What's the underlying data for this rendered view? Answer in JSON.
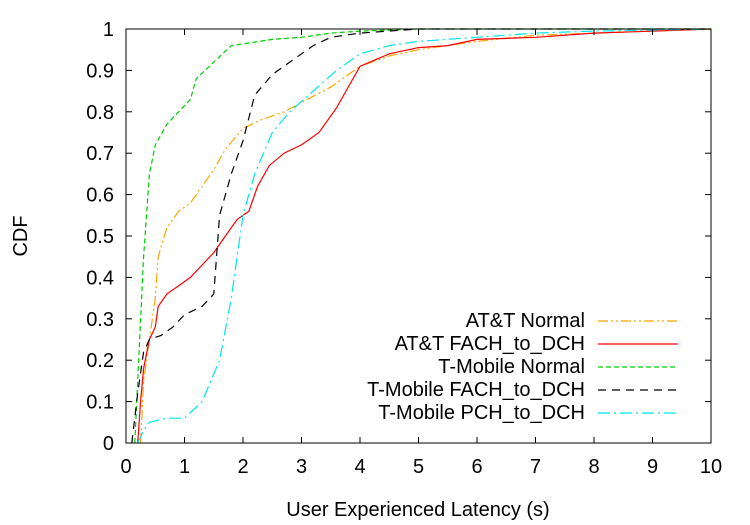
{
  "chart_data": {
    "type": "line",
    "title": "",
    "xlabel": "User Experienced Latency (s)",
    "ylabel": "CDF",
    "xlim": [
      0,
      10
    ],
    "ylim": [
      0,
      1
    ],
    "xticks": [
      "0",
      "1",
      "2",
      "3",
      "4",
      "5",
      "6",
      "7",
      "8",
      "9",
      "10"
    ],
    "yticks": [
      "0",
      "0.1",
      "0.2",
      "0.3",
      "0.4",
      "0.5",
      "0.6",
      "0.7",
      "0.8",
      "0.9",
      "1"
    ],
    "grid": false,
    "legend_position": "bottom-right",
    "series": [
      {
        "name": "AT&T Normal",
        "color": "#ffa500",
        "dash": "dash-dot-dot",
        "points": [
          [
            0.25,
            0
          ],
          [
            0.3,
            0.15
          ],
          [
            0.4,
            0.25
          ],
          [
            0.5,
            0.35
          ],
          [
            0.55,
            0.45
          ],
          [
            0.7,
            0.52
          ],
          [
            0.9,
            0.56
          ],
          [
            1.1,
            0.58
          ],
          [
            1.3,
            0.62
          ],
          [
            1.5,
            0.66
          ],
          [
            1.7,
            0.71
          ],
          [
            2.0,
            0.76
          ],
          [
            2.3,
            0.78
          ],
          [
            2.7,
            0.8
          ],
          [
            3.1,
            0.83
          ],
          [
            3.5,
            0.86
          ],
          [
            3.8,
            0.89
          ],
          [
            4.0,
            0.91
          ],
          [
            4.5,
            0.935
          ],
          [
            5.0,
            0.95
          ],
          [
            6.0,
            0.97
          ],
          [
            7.0,
            0.985
          ],
          [
            8.0,
            0.99
          ],
          [
            9.0,
            0.995
          ],
          [
            10,
            1
          ]
        ]
      },
      {
        "name": "AT&T FACH_to_DCH",
        "color": "#ff0000",
        "dash": "solid",
        "points": [
          [
            0.2,
            0
          ],
          [
            0.25,
            0.1
          ],
          [
            0.3,
            0.18
          ],
          [
            0.4,
            0.25
          ],
          [
            0.5,
            0.28
          ],
          [
            0.55,
            0.33
          ],
          [
            0.7,
            0.36
          ],
          [
            0.9,
            0.38
          ],
          [
            1.1,
            0.4
          ],
          [
            1.3,
            0.43
          ],
          [
            1.5,
            0.46
          ],
          [
            1.7,
            0.5
          ],
          [
            1.9,
            0.54
          ],
          [
            2.1,
            0.56
          ],
          [
            2.25,
            0.62
          ],
          [
            2.45,
            0.67
          ],
          [
            2.7,
            0.7
          ],
          [
            3.0,
            0.72
          ],
          [
            3.3,
            0.75
          ],
          [
            3.6,
            0.81
          ],
          [
            3.8,
            0.86
          ],
          [
            4.0,
            0.91
          ],
          [
            4.5,
            0.94
          ],
          [
            5.0,
            0.955
          ],
          [
            5.5,
            0.96
          ],
          [
            6.0,
            0.975
          ],
          [
            7.0,
            0.98
          ],
          [
            8.0,
            0.99
          ],
          [
            9.0,
            0.995
          ],
          [
            10,
            1
          ]
        ]
      },
      {
        "name": "T-Mobile Normal",
        "color": "#00cc00",
        "dash": "dashed",
        "points": [
          [
            0.15,
            0
          ],
          [
            0.2,
            0.15
          ],
          [
            0.3,
            0.45
          ],
          [
            0.4,
            0.65
          ],
          [
            0.5,
            0.72
          ],
          [
            0.7,
            0.77
          ],
          [
            0.9,
            0.8
          ],
          [
            1.1,
            0.83
          ],
          [
            1.2,
            0.88
          ],
          [
            1.5,
            0.92
          ],
          [
            1.8,
            0.96
          ],
          [
            2.5,
            0.975
          ],
          [
            3.0,
            0.98
          ],
          [
            3.5,
            0.99
          ],
          [
            4.0,
            0.995
          ],
          [
            5.0,
            1
          ],
          [
            10,
            1
          ]
        ]
      },
      {
        "name": "T-Mobile FACH_to_DCH",
        "color": "#000000",
        "dash": "dashed-long",
        "points": [
          [
            0.1,
            0
          ],
          [
            0.2,
            0.12
          ],
          [
            0.3,
            0.22
          ],
          [
            0.4,
            0.25
          ],
          [
            0.6,
            0.26
          ],
          [
            0.8,
            0.28
          ],
          [
            1.0,
            0.31
          ],
          [
            1.3,
            0.33
          ],
          [
            1.5,
            0.36
          ],
          [
            1.6,
            0.55
          ],
          [
            1.8,
            0.65
          ],
          [
            2.0,
            0.73
          ],
          [
            2.2,
            0.84
          ],
          [
            2.5,
            0.89
          ],
          [
            2.8,
            0.92
          ],
          [
            3.2,
            0.96
          ],
          [
            3.5,
            0.98
          ],
          [
            4.0,
            0.99
          ],
          [
            5.0,
            1
          ],
          [
            10,
            1
          ]
        ]
      },
      {
        "name": "T-Mobile PCH_to_DCH",
        "color": "#00e5ee",
        "dash": "dash-dot",
        "points": [
          [
            0.2,
            0
          ],
          [
            0.3,
            0.03
          ],
          [
            0.4,
            0.05
          ],
          [
            0.7,
            0.06
          ],
          [
            1.0,
            0.06
          ],
          [
            1.3,
            0.1
          ],
          [
            1.6,
            0.2
          ],
          [
            1.8,
            0.35
          ],
          [
            2.0,
            0.55
          ],
          [
            2.2,
            0.65
          ],
          [
            2.5,
            0.75
          ],
          [
            2.8,
            0.8
          ],
          [
            3.2,
            0.85
          ],
          [
            3.6,
            0.9
          ],
          [
            4.0,
            0.94
          ],
          [
            4.5,
            0.96
          ],
          [
            5.0,
            0.97
          ],
          [
            6.0,
            0.98
          ],
          [
            7.0,
            0.99
          ],
          [
            8.0,
            0.995
          ],
          [
            10,
            1
          ]
        ]
      }
    ]
  }
}
